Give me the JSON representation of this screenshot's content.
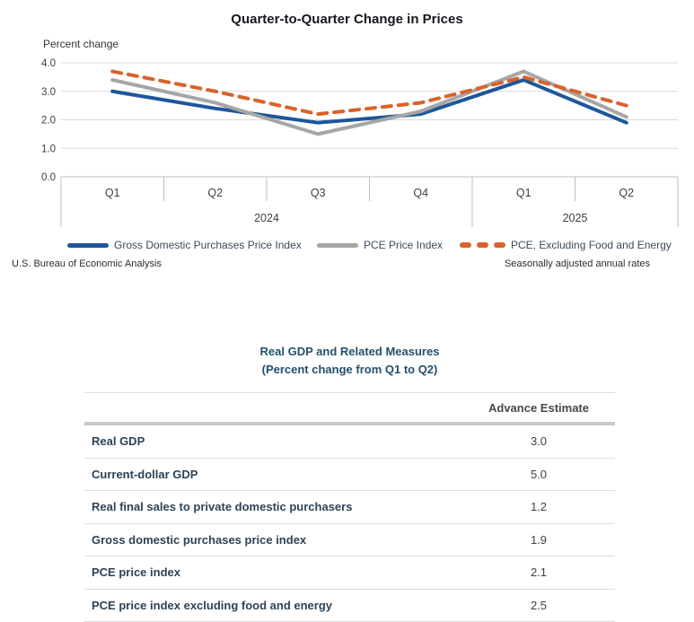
{
  "chart_data": {
    "type": "line",
    "title": "Quarter-to-Quarter Change in Prices",
    "ylabel": "Percent change",
    "ylim": [
      0,
      4
    ],
    "yticks": [
      "0.0",
      "1.0",
      "2.0",
      "3.0",
      "4.0"
    ],
    "grid": true,
    "legend_position": "bottom",
    "categories": [
      "Q1",
      "Q2",
      "Q3",
      "Q4",
      "Q1",
      "Q2"
    ],
    "year_groups": [
      {
        "label": "2024",
        "span": 4
      },
      {
        "label": "2025",
        "span": 2
      }
    ],
    "series": [
      {
        "name": "Gross Domestic Purchases Price Index",
        "color": "#1e5799",
        "style": "solid",
        "values": [
          3.0,
          2.4,
          1.9,
          2.2,
          3.4,
          1.9
        ]
      },
      {
        "name": "PCE Price Index",
        "color": "#a6a6a6",
        "style": "solid",
        "values": [
          3.4,
          2.6,
          1.5,
          2.3,
          3.7,
          2.1
        ]
      },
      {
        "name": "PCE, Excluding Food and Energy",
        "color": "#d9622b",
        "style": "dashed",
        "values": [
          3.7,
          3.0,
          2.2,
          2.6,
          3.5,
          2.5
        ]
      }
    ],
    "source_note": "U.S. Bureau of Economic Analysis",
    "adjustment_note": "Seasonally adjusted annual rates"
  },
  "table": {
    "title_line1": "Real GDP and Related Measures",
    "title_line2": "(Percent change from Q1 to Q2)",
    "column_header": "Advance Estimate",
    "rows": [
      {
        "label": "Real GDP",
        "value": "3.0"
      },
      {
        "label": "Current-dollar GDP",
        "value": "5.0"
      },
      {
        "label": "Real final sales to private domestic purchasers",
        "value": "1.2"
      },
      {
        "label": "Gross domestic purchases price index",
        "value": "1.9"
      },
      {
        "label": "PCE price index",
        "value": "2.1"
      },
      {
        "label": "PCE price index excluding food and energy",
        "value": "2.5"
      }
    ]
  },
  "colors": {
    "gridline": "#d9d9d9",
    "axis_frame": "#bfbfbf",
    "tick_text": "#404040",
    "blue_series": "#1e5799",
    "gray_series": "#a6a6a6",
    "orange_series": "#d9622b"
  }
}
